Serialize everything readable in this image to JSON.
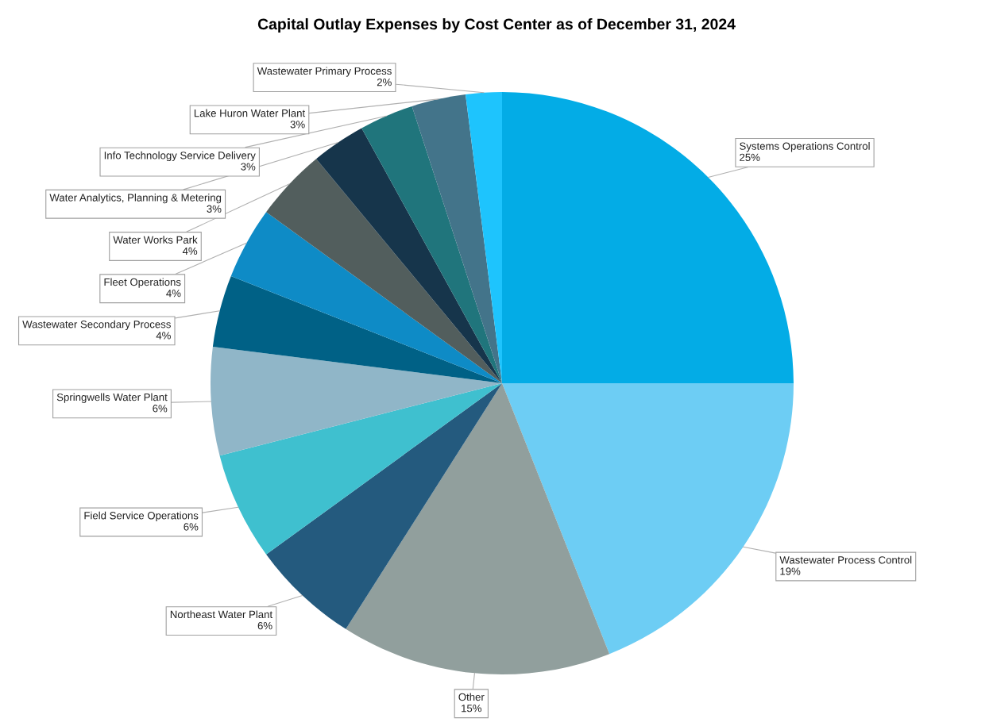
{
  "chart_data": {
    "type": "pie",
    "title": "Capital Outlay Expenses by Cost Center as of December 31, 2024",
    "categories": [
      "Systems Operations Control",
      "Wastewater Process Control",
      "Other",
      "Northeast Water Plant",
      "Field Service Operations",
      "Springwells Water Plant",
      "Wastewater Secondary Process",
      "Fleet Operations",
      "Water Works Park",
      "Water Analytics, Planning & Metering",
      "Info Technology Service Delivery",
      "Lake Huron Water Plant",
      "Wastewater Primary Process"
    ],
    "values": [
      25,
      19,
      15,
      6,
      6,
      6,
      4,
      4,
      4,
      3,
      3,
      3,
      2
    ],
    "value_labels": [
      "25%",
      "19%",
      "15%",
      "6%",
      "6%",
      "6%",
      "4%",
      "4%",
      "4%",
      "3%",
      "3%",
      "3%",
      "2%"
    ],
    "colors": [
      "#03ace6",
      "#6dcdf4",
      "#919f9d",
      "#245a7e",
      "#3fc0cf",
      "#90b6c8",
      "#006186",
      "#0e8bc6",
      "#525e5d",
      "#16354b",
      "#20757c",
      "#43748a",
      "#1ec4fd"
    ],
    "legend": false
  }
}
